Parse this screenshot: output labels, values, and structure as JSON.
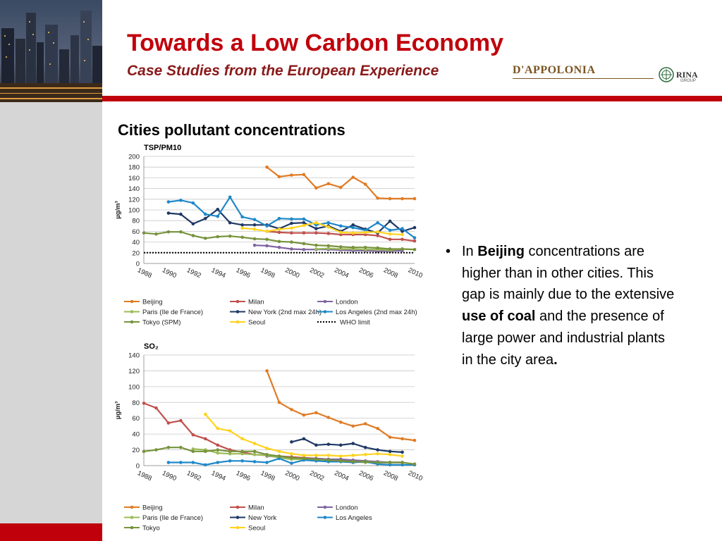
{
  "header": {
    "title": "Towards a Low Carbon Economy",
    "subtitle": "Case Studies from the European Experience",
    "logo_text": "D'APPOLONIA",
    "logo_partner": "RINA",
    "logo_partner_sub": "GROUP"
  },
  "section_heading": "Cities pollutant concentrations",
  "bullet": {
    "marker": "•",
    "t1": "In ",
    "b1": "Beijing",
    "t2": " concentrations are higher than in other cities. This gap is mainly due to the extensive ",
    "b2": "use of coal",
    "t3": " and the presence of large power and industrial plants in the city area",
    "b3": "."
  },
  "colors": {
    "accent_red": "#c0000b",
    "Beijing": "#e07b24",
    "Milan": "#c0504d",
    "London": "#8064a2",
    "Paris": "#9bbb59",
    "NewYork": "#1f3864",
    "LosAngeles": "#1e88c9",
    "Tokyo": "#77933c",
    "Seoul": "#ffd320",
    "WHO": "#000000"
  },
  "chart_data": [
    {
      "type": "line",
      "title": "TSP/PM10",
      "ylabel": "µg/m³",
      "ylim": [
        0,
        200
      ],
      "yticks": [
        0,
        20,
        40,
        60,
        80,
        100,
        120,
        140,
        160,
        180,
        200
      ],
      "xlim": [
        1988,
        2010
      ],
      "xticks": [
        1988,
        1990,
        1992,
        1994,
        1996,
        1998,
        2000,
        2002,
        2004,
        2006,
        2008,
        2010
      ],
      "grid": true,
      "legend_position": "bottom",
      "series": [
        {
          "name": "Beijing",
          "color": "Beijing",
          "x": [
            1998,
            1999,
            2000,
            2001,
            2002,
            2003,
            2004,
            2005,
            2006,
            2007,
            2008,
            2009,
            2010
          ],
          "y": [
            180,
            162,
            165,
            166,
            141,
            149,
            142,
            161,
            148,
            122,
            121,
            121,
            121
          ]
        },
        {
          "name": "Milan",
          "color": "Milan",
          "x": [
            1998,
            1999,
            2000,
            2001,
            2002,
            2003,
            2004,
            2005,
            2006,
            2007,
            2008,
            2009,
            2010
          ],
          "y": [
            60,
            58,
            57,
            57,
            57,
            56,
            54,
            54,
            54,
            52,
            45,
            45,
            42
          ]
        },
        {
          "name": "London",
          "color": "London",
          "x": [
            1997,
            1998,
            1999,
            2000,
            2001,
            2002,
            2003,
            2004,
            2005,
            2006,
            2007,
            2008,
            2009
          ],
          "y": [
            34,
            33,
            30,
            27,
            26,
            26,
            26,
            25,
            24,
            24,
            23,
            23,
            24
          ]
        },
        {
          "name": "Paris (Ile de France)",
          "color": "Paris",
          "x": [
            2002,
            2003,
            2004,
            2005,
            2006,
            2007,
            2008,
            2009,
            2010
          ],
          "y": [
            27,
            28,
            27,
            27,
            26,
            26,
            25,
            27,
            26
          ]
        },
        {
          "name": "New York (2nd max 24h)",
          "color": "NewYork",
          "x": [
            1990,
            1991,
            1992,
            1993,
            1994,
            1995,
            1996,
            1997,
            1998,
            1999,
            2000,
            2001,
            2002,
            2003,
            2004,
            2005,
            2006,
            2007,
            2008,
            2009,
            2010
          ],
          "y": [
            94,
            92,
            74,
            84,
            101,
            76,
            72,
            72,
            72,
            65,
            75,
            76,
            65,
            70,
            60,
            72,
            64,
            57,
            79,
            60,
            67
          ]
        },
        {
          "name": "Los Angeles (2nd max 24h)",
          "color": "LosAngeles",
          "x": [
            1990,
            1991,
            1992,
            1993,
            1994,
            1995,
            1996,
            1997,
            1998,
            1999,
            2000,
            2001,
            2002,
            2003,
            2004,
            2005,
            2006,
            2007,
            2008,
            2009,
            2010
          ],
          "y": [
            115,
            118,
            113,
            92,
            88,
            124,
            87,
            82,
            70,
            84,
            83,
            83,
            72,
            76,
            70,
            67,
            62,
            76,
            62,
            65,
            48
          ]
        },
        {
          "name": "Tokyo  (SPM)",
          "color": "Tokyo",
          "x": [
            1988,
            1989,
            1990,
            1991,
            1992,
            1993,
            1994,
            1995,
            1996,
            1997,
            1998,
            1999,
            2000,
            2001,
            2002,
            2003,
            2004,
            2005,
            2006,
            2007,
            2008,
            2009,
            2010
          ],
          "y": [
            57,
            55,
            59,
            59,
            52,
            47,
            50,
            51,
            49,
            46,
            45,
            41,
            40,
            37,
            34,
            33,
            31,
            30,
            30,
            29,
            27,
            27,
            26
          ]
        },
        {
          "name": "Seoul",
          "color": "Seoul",
          "x": [
            1996,
            1997,
            1998,
            1999,
            2000,
            2001,
            2002,
            2003,
            2004,
            2005,
            2006,
            2007,
            2008,
            2009
          ],
          "y": [
            66,
            64,
            60,
            64,
            66,
            71,
            76,
            68,
            58,
            57,
            58,
            59,
            55,
            54
          ]
        },
        {
          "name": "WHO limit",
          "color": "WHO",
          "dashed": true,
          "x": [
            1988,
            2010
          ],
          "y": [
            20,
            20
          ]
        }
      ],
      "legend": [
        [
          {
            "name": "Beijing",
            "color": "Beijing"
          },
          {
            "name": "Milan",
            "color": "Milan"
          },
          {
            "name": "London",
            "color": "London"
          }
        ],
        [
          {
            "name": "Paris (Ile de France)",
            "color": "Paris"
          },
          {
            "name": "New York (2nd max 24h)",
            "color": "NewYork"
          },
          {
            "name": "Los Angeles (2nd max 24h)",
            "color": "LosAngeles"
          }
        ],
        [
          {
            "name": "Tokyo  (SPM)",
            "color": "Tokyo"
          },
          {
            "name": "Seoul",
            "color": "Seoul"
          },
          {
            "name": "WHO limit",
            "color": "WHO",
            "dashed": true
          }
        ]
      ]
    },
    {
      "type": "line",
      "title": "SO₂",
      "ylabel": "µg/m³",
      "ylim": [
        0,
        140
      ],
      "yticks": [
        0,
        20,
        40,
        60,
        80,
        100,
        120,
        140
      ],
      "xlim": [
        1988,
        2010
      ],
      "xticks": [
        1988,
        1990,
        1992,
        1994,
        1996,
        1998,
        2000,
        2002,
        2004,
        2006,
        2008,
        2010
      ],
      "grid": true,
      "legend_position": "bottom",
      "series": [
        {
          "name": "Beijing",
          "color": "Beijing",
          "x": [
            1998,
            1999,
            2000,
            2001,
            2002,
            2003,
            2004,
            2005,
            2006,
            2007,
            2008,
            2009,
            2010
          ],
          "y": [
            120,
            80,
            71,
            64,
            67,
            61,
            55,
            50,
            53,
            47,
            36,
            34,
            32
          ]
        },
        {
          "name": "Milan",
          "color": "Milan",
          "x": [
            1988,
            1989,
            1990,
            1991,
            1992,
            1993,
            1994,
            1995,
            1996,
            1997,
            1998,
            1999,
            2000,
            2001,
            2002,
            2003,
            2004,
            2005,
            2006,
            2007,
            2008,
            2009
          ],
          "y": [
            79,
            73,
            54,
            57,
            39,
            34,
            26,
            20,
            17,
            14,
            13,
            12,
            11,
            10,
            9,
            8,
            7,
            6,
            5,
            4,
            4,
            4
          ]
        },
        {
          "name": "London",
          "color": "London",
          "x": [
            1998,
            1999,
            2000,
            2001,
            2002,
            2003,
            2004,
            2005,
            2006,
            2007,
            2008,
            2009
          ],
          "y": [
            12,
            11,
            10,
            9,
            9,
            8,
            8,
            7,
            6,
            5,
            4,
            4
          ]
        },
        {
          "name": "Paris (Ile de France)",
          "color": "Paris",
          "x": [
            1992,
            1993,
            1994,
            1995,
            1996,
            1997,
            1998,
            1999,
            2000,
            2001,
            2002,
            2003,
            2004,
            2005,
            2006,
            2007,
            2008,
            2009
          ],
          "y": [
            21,
            20,
            16,
            15,
            15,
            14,
            13,
            10,
            8,
            8,
            8,
            7,
            6,
            5,
            4,
            4,
            4,
            4
          ]
        },
        {
          "name": "New York",
          "color": "NewYork",
          "x": [
            2000,
            2001,
            2002,
            2003,
            2004,
            2005,
            2006,
            2007,
            2008,
            2009
          ],
          "y": [
            30,
            34,
            26,
            27,
            26,
            28,
            23,
            20,
            18,
            17
          ]
        },
        {
          "name": "Los Angeles",
          "color": "LosAngeles",
          "x": [
            1990,
            1991,
            1992,
            1993,
            1994,
            1995,
            1996,
            1997,
            1998,
            1999,
            2000,
            2001,
            2002,
            2003,
            2004,
            2005,
            2006,
            2007,
            2008,
            2009,
            2010
          ],
          "y": [
            4,
            4,
            4,
            1,
            4,
            6,
            6,
            5,
            4,
            9,
            3,
            7,
            6,
            5,
            5,
            4,
            5,
            2,
            1,
            1,
            1
          ]
        },
        {
          "name": "Tokyo",
          "color": "Tokyo",
          "x": [
            1988,
            1989,
            1990,
            1991,
            1992,
            1993,
            1994,
            1995,
            1996,
            1997,
            1998,
            1999,
            2000,
            2001,
            2002,
            2003,
            2004,
            2005,
            2006,
            2007,
            2008,
            2009,
            2010
          ],
          "y": [
            18,
            20,
            23,
            23,
            18,
            18,
            20,
            18,
            18,
            18,
            14,
            12,
            10,
            9,
            8,
            7,
            6,
            5,
            5,
            4,
            4,
            4,
            2
          ]
        },
        {
          "name": "Seoul",
          "color": "Seoul",
          "x": [
            1993,
            1994,
            1995,
            1996,
            1997,
            1998,
            1999,
            2000,
            2001,
            2002,
            2003,
            2004,
            2005,
            2006,
            2007,
            2008,
            2009
          ],
          "y": [
            65,
            47,
            44,
            34,
            28,
            22,
            18,
            15,
            13,
            13,
            13,
            12,
            13,
            14,
            15,
            14,
            12
          ]
        }
      ],
      "legend": [
        [
          {
            "name": "Beijing",
            "color": "Beijing"
          },
          {
            "name": "Milan",
            "color": "Milan"
          },
          {
            "name": "London",
            "color": "London"
          }
        ],
        [
          {
            "name": "Paris (Ile de France)",
            "color": "Paris"
          },
          {
            "name": "New York",
            "color": "NewYork"
          },
          {
            "name": "Los Angeles",
            "color": "LosAngeles"
          }
        ],
        [
          {
            "name": "Tokyo",
            "color": "Tokyo"
          },
          {
            "name": "Seoul",
            "color": "Seoul"
          }
        ]
      ]
    }
  ]
}
